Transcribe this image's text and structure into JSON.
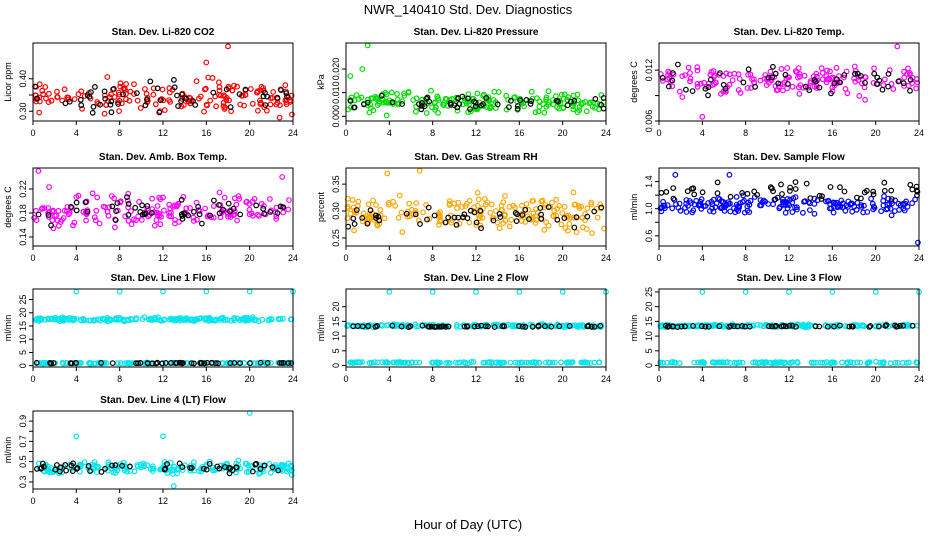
{
  "title": "NWR_140410  Std. Dev. Diagnostics",
  "xlabel": "Hour of Day (UTC)",
  "chart_data": [
    {
      "type": "scatter",
      "title": "Stan. Dev. Li-820 CO2",
      "ylabel": "Licor ppm",
      "xlim": [
        0,
        24
      ],
      "ylim": [
        0.27,
        0.51
      ],
      "yticks": [
        0.3,
        0.35,
        0.4
      ],
      "ytick_labels": [
        "0.30",
        "",
        "0.40"
      ],
      "xticks": [
        0,
        4,
        8,
        12,
        16,
        20,
        24
      ],
      "color": "#ff0000",
      "series": [
        {
          "color": "#ff0000",
          "center": 0.345,
          "spread": 0.045,
          "count": 170
        },
        {
          "color": "#000000",
          "center": 0.345,
          "spread": 0.04,
          "count": 50
        }
      ],
      "outliers": [
        [
          18,
          0.5
        ],
        [
          16,
          0.45
        ],
        [
          23.9,
          0.29
        ]
      ]
    },
    {
      "type": "scatter",
      "title": "Stan. Dev. Li-820 Pressure",
      "ylabel": "kPa",
      "xlim": [
        0,
        24
      ],
      "ylim": [
        -0.002,
        0.031
      ],
      "yticks": [
        0.0,
        0.01,
        0.02
      ],
      "ytick_labels": [
        "0.000",
        "0.010",
        "0.020"
      ],
      "xticks": [
        0,
        4,
        8,
        12,
        16,
        20,
        24
      ],
      "color": "#00dd00",
      "series": [
        {
          "color": "#00dd00",
          "center": 0.006,
          "spread": 0.004,
          "count": 190
        },
        {
          "color": "#000000",
          "center": 0.006,
          "spread": 0.003,
          "count": 50
        }
      ],
      "outliers": [
        [
          2,
          0.03
        ],
        [
          1.5,
          0.02
        ],
        [
          0.4,
          0.017
        ]
      ]
    },
    {
      "type": "scatter",
      "title": "Stan. Dev. Li-820 Temp.",
      "ylabel": "degrees C",
      "xlim": [
        0,
        24
      ],
      "ylim": [
        0.006,
        0.0152
      ],
      "yticks": [
        0.006,
        0.009,
        0.012
      ],
      "ytick_labels": [
        "0.006",
        "",
        "0.012"
      ],
      "xticks": [
        0,
        4,
        8,
        12,
        16,
        20,
        24
      ],
      "color": "#ff00ff",
      "series": [
        {
          "color": "#ff00ff",
          "center": 0.0108,
          "spread": 0.0016,
          "count": 170
        },
        {
          "color": "#000000",
          "center": 0.0108,
          "spread": 0.0014,
          "count": 50
        }
      ],
      "outliers": [
        [
          4,
          0.0065
        ],
        [
          22,
          0.0148
        ]
      ]
    },
    {
      "type": "scatter",
      "title": "Stan. Dev. Amb. Box Temp.",
      "ylabel": "degrees C",
      "xlim": [
        0,
        24
      ],
      "ylim": [
        0.125,
        0.255
      ],
      "yticks": [
        0.14,
        0.18,
        0.22
      ],
      "ytick_labels": [
        "0.14",
        "0.18",
        "0.22"
      ],
      "xticks": [
        0,
        4,
        8,
        12,
        16,
        20,
        24
      ],
      "color": "#ff00ff",
      "series": [
        {
          "color": "#ff00ff",
          "center": 0.185,
          "spread": 0.025,
          "count": 170
        },
        {
          "color": "#000000",
          "center": 0.185,
          "spread": 0.02,
          "count": 50
        }
      ],
      "outliers": [
        [
          0.5,
          0.25
        ],
        [
          23,
          0.24
        ]
      ]
    },
    {
      "type": "scatter",
      "title": "Stan. Dev. Gas Stream RH",
      "ylabel": "percent",
      "xlim": [
        0,
        24
      ],
      "ylim": [
        0.235,
        0.38
      ],
      "yticks": [
        0.25,
        0.3,
        0.35
      ],
      "ytick_labels": [
        "0.25",
        "0.30",
        "0.35"
      ],
      "xticks": [
        0,
        4,
        8,
        12,
        16,
        20,
        24
      ],
      "color": "#ffa500",
      "series": [
        {
          "color": "#ffa500",
          "center": 0.295,
          "spread": 0.03,
          "count": 190
        },
        {
          "color": "#000000",
          "center": 0.29,
          "spread": 0.02,
          "count": 50
        }
      ],
      "outliers": [
        [
          6.8,
          0.375
        ],
        [
          3.8,
          0.37
        ]
      ]
    },
    {
      "type": "scatter",
      "title": "Stan. Dev. Sample Flow",
      "ylabel": "ml/min",
      "xlim": [
        0,
        24
      ],
      "ylim": [
        0.45,
        1.6
      ],
      "yticks": [
        0.6,
        0.8,
        1.0,
        1.2,
        1.4
      ],
      "ytick_labels": [
        "0.6",
        "",
        "1.0",
        "",
        "1.4"
      ],
      "xticks": [
        0,
        4,
        8,
        12,
        16,
        20,
        24
      ],
      "color": "#0000ff",
      "series": [
        {
          "color": "#0000ff",
          "center": 1.05,
          "spread": 0.12,
          "count": 190
        },
        {
          "color": "#000000",
          "center": 1.25,
          "spread": 0.12,
          "count": 50
        }
      ],
      "outliers": [
        [
          23.9,
          0.5
        ],
        [
          1.5,
          1.5
        ],
        [
          6.5,
          1.5
        ]
      ]
    },
    {
      "type": "scatter",
      "title": "Stan. Dev. Line 1 Flow",
      "ylabel": "ml/min",
      "xlim": [
        0,
        24
      ],
      "ylim": [
        -0.5,
        29
      ],
      "yticks": [
        0,
        5,
        10,
        15,
        20,
        25
      ],
      "ytick_labels": [
        "0",
        "5",
        "10",
        "15",
        "20",
        "25"
      ],
      "xticks": [
        0,
        4,
        8,
        12,
        16,
        20,
        24
      ],
      "color": "#00e5ee",
      "series": [
        {
          "color": "#00e5ee",
          "center": 17.5,
          "spread": 0.6,
          "count": 190
        },
        {
          "color": "#00e5ee",
          "center": 1.0,
          "spread": 0.2,
          "count": 120
        },
        {
          "color": "#000000",
          "center": 1.0,
          "spread": 0.15,
          "count": 50
        }
      ],
      "outliers": [
        [
          4,
          28
        ],
        [
          8,
          28
        ],
        [
          12,
          28
        ],
        [
          16,
          28
        ],
        [
          20,
          28
        ],
        [
          24,
          28
        ]
      ]
    },
    {
      "type": "scatter",
      "title": "Stan. Dev. Line 2 Flow",
      "ylabel": "ml/min",
      "xlim": [
        0,
        24
      ],
      "ylim": [
        -0.5,
        26
      ],
      "yticks": [
        0,
        5,
        10,
        15,
        20
      ],
      "ytick_labels": [
        "0",
        "5",
        "10",
        "15",
        "20"
      ],
      "xticks": [
        0,
        4,
        8,
        12,
        16,
        20,
        24
      ],
      "color": "#00e5ee",
      "series": [
        {
          "color": "#00e5ee",
          "center": 13.5,
          "spread": 0.4,
          "count": 170
        },
        {
          "color": "#00e5ee",
          "center": 1.0,
          "spread": 0.2,
          "count": 120
        },
        {
          "color": "#000000",
          "center": 13.3,
          "spread": 0.3,
          "count": 50
        }
      ],
      "outliers": [
        [
          4,
          25
        ],
        [
          8,
          25
        ],
        [
          12,
          25
        ],
        [
          16,
          25
        ],
        [
          20,
          25
        ],
        [
          24,
          25
        ]
      ]
    },
    {
      "type": "scatter",
      "title": "Stan. Dev. Line 3 Flow",
      "ylabel": "ml/min",
      "xlim": [
        0,
        24
      ],
      "ylim": [
        -0.5,
        26
      ],
      "yticks": [
        0,
        5,
        10,
        15,
        20,
        25
      ],
      "ytick_labels": [
        "0",
        "5",
        "10",
        "15",
        "20",
        "25"
      ],
      "xticks": [
        0,
        4,
        8,
        12,
        16,
        20,
        24
      ],
      "color": "#00e5ee",
      "series": [
        {
          "color": "#00e5ee",
          "center": 13.5,
          "spread": 0.4,
          "count": 170
        },
        {
          "color": "#00e5ee",
          "center": 1.0,
          "spread": 0.2,
          "count": 120
        },
        {
          "color": "#000000",
          "center": 13.3,
          "spread": 0.3,
          "count": 50
        }
      ],
      "outliers": [
        [
          4,
          25
        ],
        [
          8,
          25
        ],
        [
          12,
          25
        ],
        [
          16,
          25
        ],
        [
          20,
          25
        ],
        [
          24,
          25
        ]
      ]
    },
    {
      "type": "scatter",
      "title": "Stan. Dev. Line 4 (LT) Flow",
      "ylabel": "ml/min",
      "xlim": [
        0,
        24
      ],
      "ylim": [
        0.23,
        1.0
      ],
      "yticks": [
        0.3,
        0.4,
        0.5,
        0.6,
        0.7,
        0.8,
        0.9
      ],
      "ytick_labels": [
        "0.3",
        "",
        "0.5",
        "",
        "0.7",
        "",
        "0.9"
      ],
      "xticks": [
        0,
        4,
        8,
        12,
        16,
        20,
        24
      ],
      "color": "#00e5ee",
      "series": [
        {
          "color": "#00e5ee",
          "center": 0.44,
          "spread": 0.055,
          "count": 190
        },
        {
          "color": "#000000",
          "center": 0.44,
          "spread": 0.05,
          "count": 50
        }
      ],
      "outliers": [
        [
          4,
          0.75
        ],
        [
          12,
          0.75
        ],
        [
          20,
          0.98
        ],
        [
          13,
          0.26
        ]
      ]
    }
  ]
}
